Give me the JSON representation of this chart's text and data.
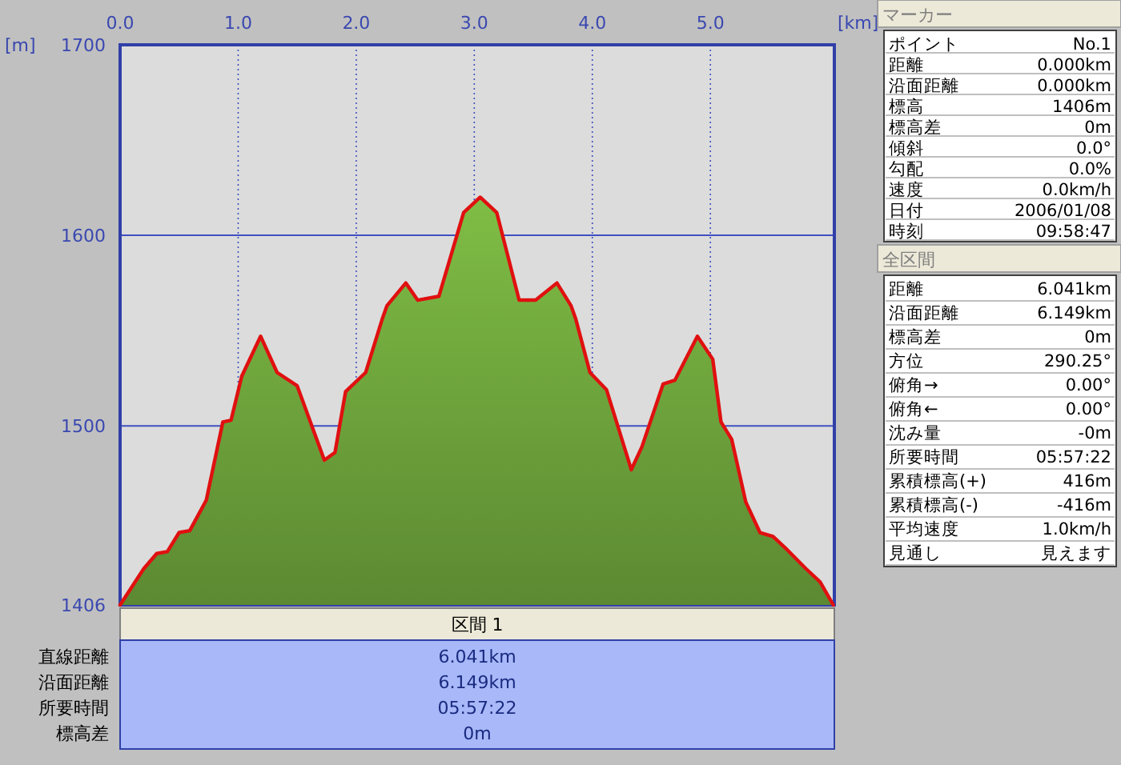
{
  "chart_data": [
    {
      "type": "area",
      "xlabel": "[km]",
      "ylabel": "[m]",
      "xlim": [
        0,
        6.05
      ],
      "ylim": [
        1406,
        1700
      ],
      "xticks": [
        {
          "value": 0,
          "label": "0.0"
        },
        {
          "value": 1,
          "label": "1.0"
        },
        {
          "value": 2,
          "label": "2.0"
        },
        {
          "value": 3,
          "label": "3.0"
        },
        {
          "value": 4,
          "label": "4.0"
        },
        {
          "value": 5,
          "label": "5.0"
        }
      ],
      "yticks": [
        1406,
        1500,
        1600,
        1700
      ],
      "grid": true,
      "x": [
        0,
        0.2,
        0.31,
        0.4,
        0.5,
        0.59,
        0.73,
        0.87,
        0.94,
        1.03,
        1.19,
        1.33,
        1.5,
        1.73,
        1.82,
        1.91,
        2.08,
        2.22,
        2.26,
        2.42,
        2.52,
        2.7,
        2.91,
        3.05,
        3.19,
        3.38,
        3.52,
        3.7,
        3.82,
        3.86,
        3.98,
        4.12,
        4.33,
        4.42,
        4.6,
        4.7,
        4.89,
        5.02,
        5.09,
        5.18,
        5.3,
        5.42,
        5.53,
        5.65,
        5.81,
        5.93,
        6.041
      ],
      "series": [
        {
          "type": "area",
          "color": "#6a9e3a",
          "values": [
            1406,
            1425,
            1433,
            1434,
            1444,
            1445,
            1461,
            1502,
            1503,
            1526,
            1547,
            1528,
            1521,
            1482,
            1486,
            1518,
            1528,
            1556,
            1563,
            1575,
            1566,
            1568,
            1612,
            1620,
            1612,
            1566,
            1566,
            1575,
            1563,
            1556,
            1528,
            1519,
            1477,
            1489,
            1522,
            1524,
            1547,
            1535,
            1502,
            1493,
            1460,
            1444,
            1442,
            1435,
            1425,
            1418,
            1406
          ]
        }
      ]
    },
    {
      "type": "other",
      "title": "区間 1",
      "categories": [
        "直線距離",
        "沿面距離",
        "所要時間",
        "標高差"
      ],
      "value_labels": [
        "6.041km",
        "6.149km",
        "05:57:22",
        "0m"
      ]
    },
    {
      "type": "other",
      "title": "マーカー",
      "categories": [
        "ポイント",
        "距離",
        "沿面距離",
        "標高",
        "標高差",
        "傾斜",
        "勾配",
        "速度",
        "日付",
        "時刻"
      ],
      "value_labels": [
        "No.1",
        "0.000km",
        "0.000km",
        "1406m",
        "0m",
        "0.0°",
        "0.0%",
        "0.0km/h",
        "2006/01/08",
        "09:58:47"
      ]
    },
    {
      "type": "other",
      "title": "全区間",
      "categories": [
        "距離",
        "沿面距離",
        "標高差",
        "方位",
        "俯角→",
        "俯角←",
        "沈み量",
        "所要時間",
        "累積標高(+)",
        "累積標高(-)",
        "平均速度",
        "見通し"
      ],
      "value_labels": [
        "6.041km",
        "6.149km",
        "0m",
        "290.25°",
        "0.00°",
        "0.00°",
        "-0m",
        "05:57:22",
        "416m",
        "-416m",
        "1.0km/h",
        "見えます"
      ]
    }
  ]
}
